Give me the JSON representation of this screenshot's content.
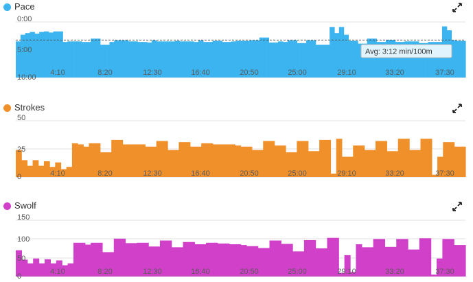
{
  "panels": [
    {
      "id": "pace",
      "title": "Pace",
      "color": "#3bb4ef",
      "icon": "expand-icon",
      "avg_label": "Avg: 3:12 min/100m",
      "chart_data": {
        "type": "area",
        "series": [
          {
            "name": "Pace",
            "values": [
              3.5,
              2.3,
              2.0,
              1.8,
              2.1,
              1.8,
              1.7,
              1.9,
              1.7,
              1.7,
              3.6,
              3.5,
              3.5,
              3.5,
              3.6,
              3.6,
              3.0,
              3.0,
              4.1,
              4.1,
              3.6,
              3.3,
              3.3,
              3.3,
              3.5,
              3.5,
              3.6,
              3.6,
              3.7,
              3.3,
              3.5,
              3.5,
              3.5,
              3.5,
              3.4,
              3.5,
              3.5,
              3.5,
              3.6,
              3.3,
              3.6,
              3.6,
              3.4,
              3.4,
              3.6,
              3.6,
              3.5,
              3.4,
              3.4,
              3.4,
              3.3,
              3.3,
              2.8,
              2.8,
              3.7,
              3.7,
              3.5,
              3.6,
              3.3,
              3.3,
              3.8,
              3.8,
              3.3,
              3.3,
              4.1,
              4.1,
              4.1,
              0.9,
              2.0,
              0.9,
              2.3,
              3.4,
              3.4,
              3.9,
              3.9,
              3.0,
              3.0,
              3.6,
              3.6,
              3.2,
              3.2,
              3.6,
              3.6,
              3.5,
              3.5,
              3.5,
              3.8,
              3.8,
              3.6,
              3.6,
              3.6,
              0.8,
              1.5,
              3.3,
              3.4,
              3.4
            ]
          }
        ],
        "x_ticks": [
          "4:10",
          "8:20",
          "12:30",
          "16:40",
          "20:50",
          "25:00",
          "29:10",
          "33:20",
          "37:30"
        ],
        "y_ticks": [
          "0:00",
          "5:00",
          "10:00"
        ],
        "ylim": [
          0,
          10
        ],
        "inverted_y": true,
        "average": 3.2
      }
    },
    {
      "id": "strokes",
      "title": "Strokes",
      "color": "#f0902a",
      "icon": "expand-icon",
      "chart_data": {
        "type": "area",
        "series": [
          {
            "name": "Strokes",
            "values": [
              24,
              15,
              10,
              15,
              10,
              14,
              9,
              13,
              7,
              9,
              30,
              29,
              27,
              30,
              30,
              22,
              22,
              33,
              33,
              29,
              29,
              29,
              29,
              27,
              27,
              32,
              32,
              24,
              24,
              31,
              31,
              27,
              27,
              30,
              30,
              29,
              29,
              29,
              29,
              28,
              27,
              27,
              24,
              24,
              32,
              32,
              28,
              28,
              22,
              22,
              32,
              32,
              23,
              23,
              33,
              33,
              3,
              34,
              18,
              18,
              28,
              28,
              24,
              24,
              32,
              32,
              23,
              23,
              34,
              34,
              24,
              24,
              34,
              34,
              2,
              18,
              31,
              31,
              27,
              27
            ]
          }
        ],
        "x_ticks": [
          "4:10",
          "8:20",
          "12:30",
          "16:40",
          "20:50",
          "25:00",
          "29:10",
          "33:20",
          "37:30"
        ],
        "y_ticks": [
          "50",
          "25",
          "0"
        ],
        "ylim": [
          0,
          50
        ]
      }
    },
    {
      "id": "swolf",
      "title": "Swolf",
      "color": "#d040c8",
      "icon": "expand-icon",
      "chart_data": {
        "type": "area",
        "series": [
          {
            "name": "Swolf",
            "values": [
              70,
              45,
              35,
              48,
              35,
              46,
              35,
              43,
              30,
              35,
              90,
              90,
              85,
              90,
              90,
              65,
              65,
              101,
              101,
              89,
              89,
              90,
              90,
              80,
              80,
              96,
              96,
              78,
              78,
              92,
              92,
              86,
              86,
              90,
              90,
              88,
              88,
              86,
              86,
              84,
              81,
              81,
              76,
              76,
              96,
              96,
              87,
              87,
              67,
              67,
              97,
              97,
              75,
              75,
              103,
              103,
              10,
              57,
              12,
              86,
              78,
              78,
              100,
              100,
              79,
              79,
              100,
              100,
              72,
              72,
              102,
              102,
              5,
              48,
              100,
              100,
              84,
              84
            ]
          }
        ],
        "x_ticks": [
          "4:10",
          "8:20",
          "12:30",
          "16:40",
          "20:50",
          "25:00",
          "29:10",
          "33:20",
          "37:30"
        ],
        "y_ticks": [
          "150",
          "100",
          "50",
          "0"
        ],
        "ylim": [
          0,
          150
        ]
      }
    }
  ]
}
